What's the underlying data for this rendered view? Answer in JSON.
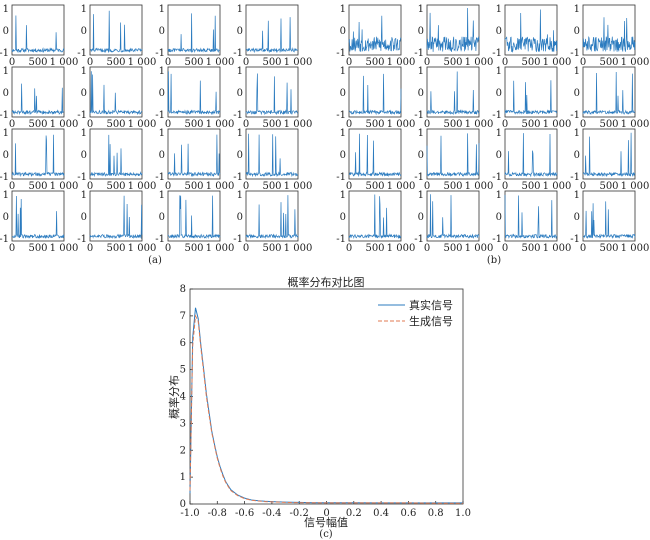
{
  "chart_data": [
    {
      "type": "line",
      "panel": "(a)",
      "grid": "4x4 small-multiples",
      "x_tick_labels": [
        "0",
        "500",
        "1 000"
      ],
      "y_tick_labels": [
        "1",
        "0",
        "-1"
      ],
      "xlim": [
        0,
        1000
      ],
      "ylim": [
        -1,
        1
      ],
      "series_count": 16
    },
    {
      "type": "line",
      "panel": "(b)",
      "grid": "4x4 small-multiples",
      "x_tick_labels": [
        "0",
        "500",
        "1 000"
      ],
      "y_tick_labels": [
        "1",
        "0",
        "-1"
      ],
      "xlim": [
        0,
        1000
      ],
      "ylim": [
        -1,
        1
      ],
      "series_count": 16
    },
    {
      "type": "line",
      "panel": "(c)",
      "title": "概率分布对比图",
      "xlabel": "信号幅值",
      "ylabel": "概率分布",
      "xlim": [
        -1.0,
        1.0
      ],
      "ylim": [
        0,
        8
      ],
      "x_ticks": [
        "-1.0",
        "-0.8",
        "-0.6",
        "-0.4",
        "-0.2",
        "0",
        "0.2",
        "0.4",
        "0.6",
        "0.8",
        "1.0"
      ],
      "y_ticks": [
        "0",
        "1",
        "2",
        "3",
        "4",
        "5",
        "6",
        "7",
        "8"
      ],
      "legend_position": "top-right",
      "x": [
        -1.0,
        -0.98,
        -0.96,
        -0.94,
        -0.92,
        -0.9,
        -0.88,
        -0.86,
        -0.84,
        -0.82,
        -0.8,
        -0.78,
        -0.76,
        -0.74,
        -0.72,
        -0.7,
        -0.65,
        -0.6,
        -0.55,
        -0.5,
        -0.45,
        -0.4,
        -0.3,
        -0.2,
        -0.1,
        0.0,
        0.2,
        0.4,
        0.6,
        0.8,
        1.0
      ],
      "series": [
        {
          "name": "真实信号",
          "color": "#2b7bbf",
          "dash": "solid",
          "values": [
            0.4,
            6.2,
            7.3,
            6.9,
            5.9,
            5.0,
            4.1,
            3.4,
            2.7,
            2.2,
            1.75,
            1.4,
            1.1,
            0.85,
            0.68,
            0.53,
            0.33,
            0.22,
            0.15,
            0.12,
            0.1,
            0.09,
            0.07,
            0.06,
            0.05,
            0.05,
            0.05,
            0.04,
            0.04,
            0.04,
            0.04
          ]
        },
        {
          "name": "生成信号",
          "color": "#e07a52",
          "dash": "dashed",
          "values": [
            0.5,
            5.9,
            7.0,
            6.8,
            5.8,
            4.9,
            4.0,
            3.3,
            2.65,
            2.15,
            1.7,
            1.35,
            1.05,
            0.82,
            0.65,
            0.5,
            0.31,
            0.2,
            0.14,
            0.11,
            0.09,
            0.08,
            0.06,
            0.05,
            0.05,
            0.04,
            0.04,
            0.04,
            0.04,
            0.03,
            0.03
          ]
        }
      ]
    }
  ],
  "panel_labels": {
    "a": "(a)",
    "b": "(b)",
    "c": "(c)"
  },
  "colors": {
    "signal": "#2b7bbf",
    "real": "#2b7bbf",
    "generated": "#e07a52"
  }
}
